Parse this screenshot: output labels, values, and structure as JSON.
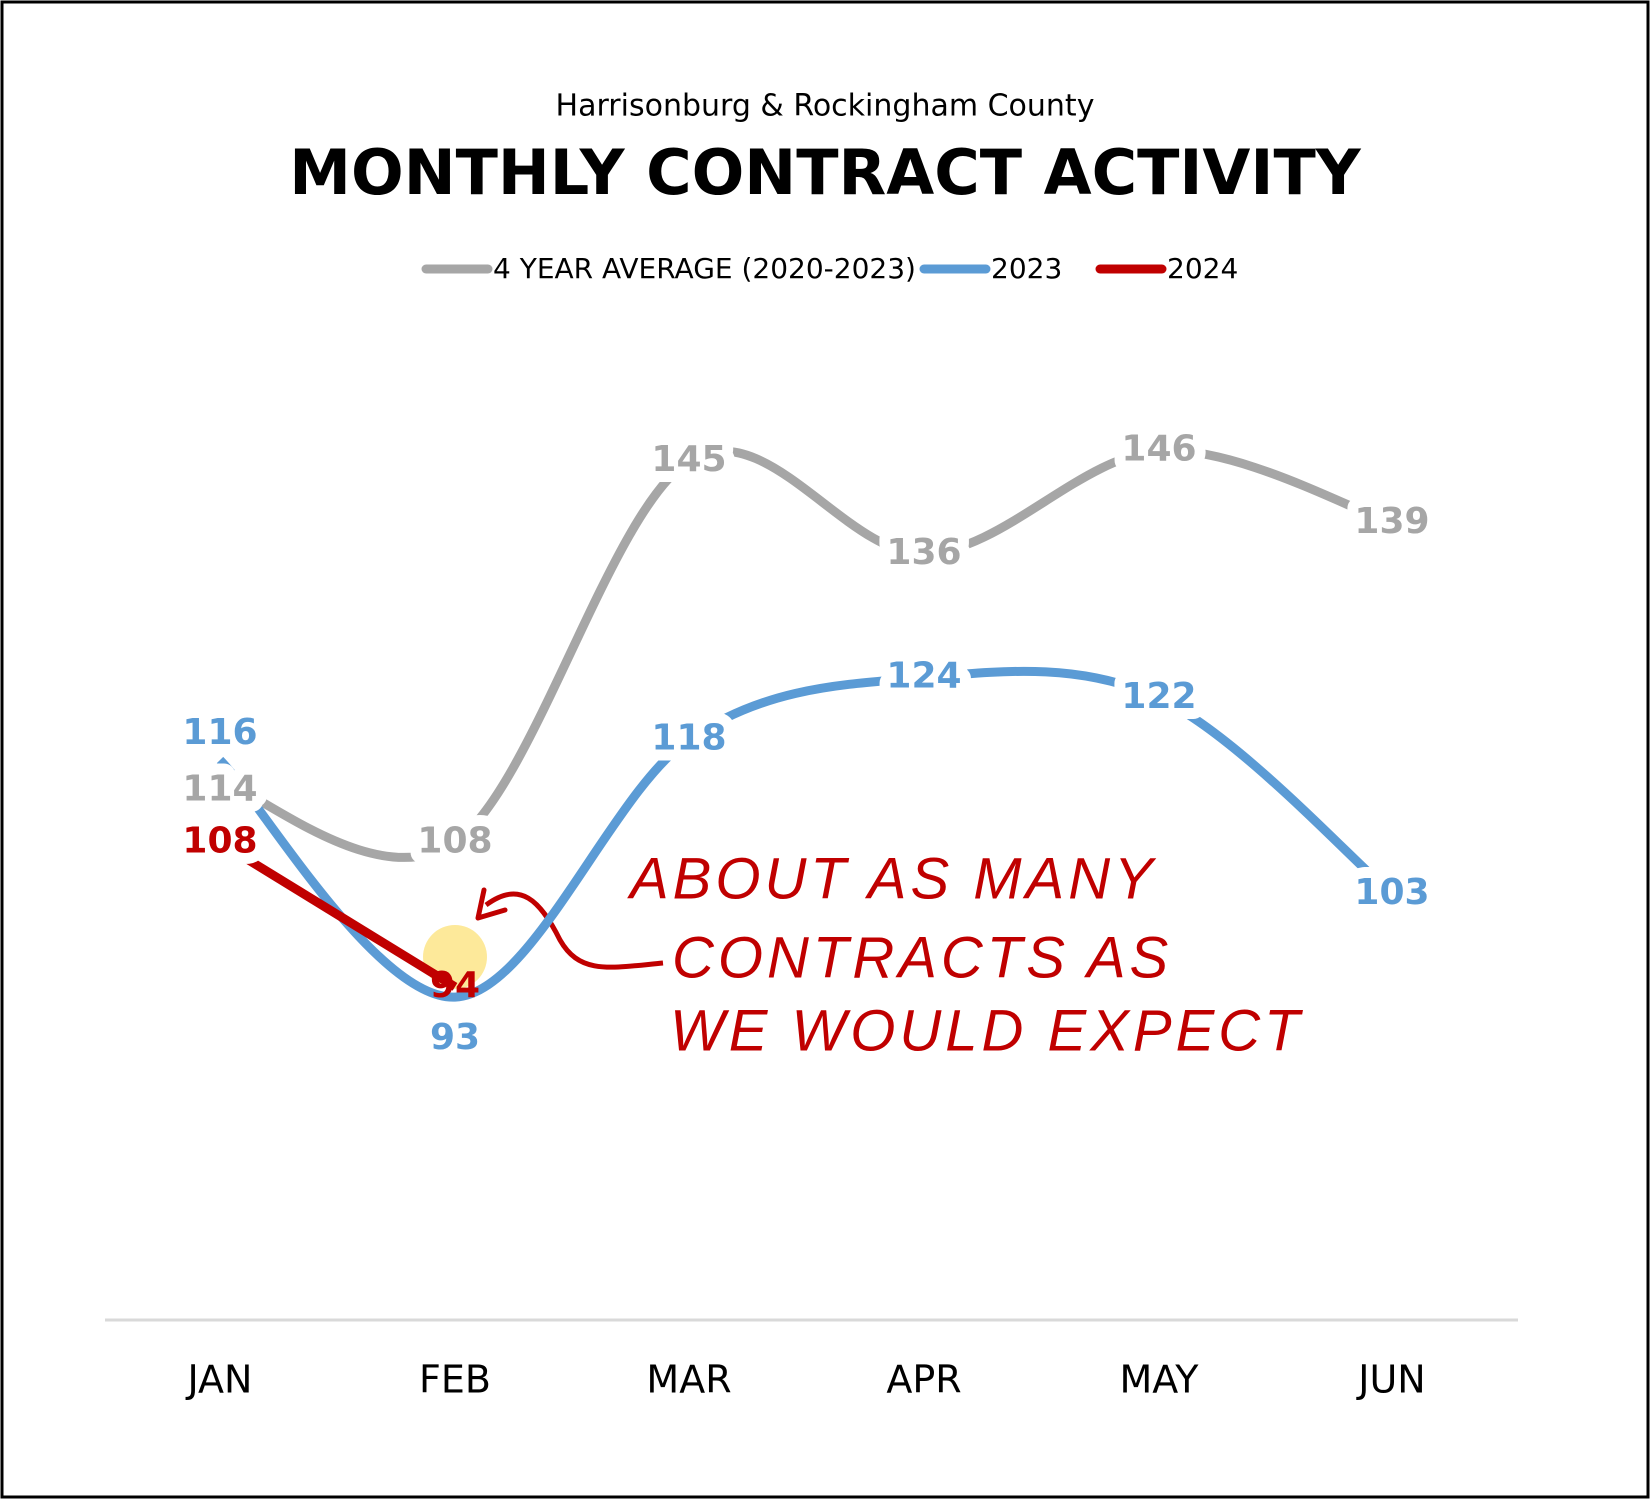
{
  "chart_data": {
    "type": "line",
    "subtitle": "Harrisonburg & Rockingham County",
    "title": "MONTHLY CONTRACT ACTIVITY",
    "categories": [
      "JAN",
      "FEB",
      "MAR",
      "APR",
      "MAY",
      "JUN"
    ],
    "series": [
      {
        "name": "4 YEAR AVERAGE (2020-2023)",
        "color": "#a6a6a6",
        "values": [
          114,
          108,
          145,
          136,
          146,
          139
        ]
      },
      {
        "name": "2023",
        "color": "#5b9bd5",
        "values": [
          116,
          93,
          118,
          124,
          122,
          103
        ]
      },
      {
        "name": "2024",
        "color": "#c00000",
        "values": [
          108,
          94,
          null,
          null,
          null,
          null
        ]
      }
    ],
    "annotation": [
      "ABOUT AS MANY",
      "CONTRACTS AS",
      "WE WOULD EXPECT"
    ]
  }
}
